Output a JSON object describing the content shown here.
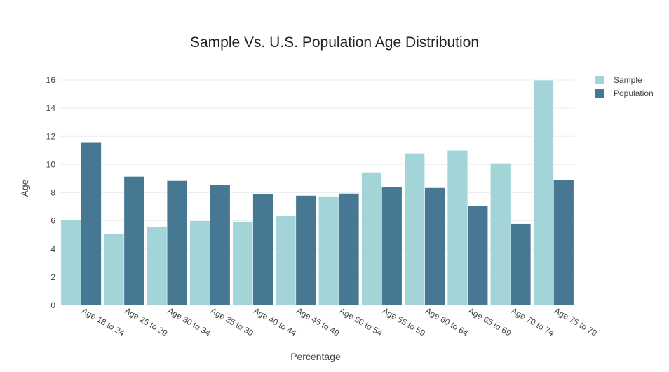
{
  "chart_data": {
    "type": "bar",
    "title": "Sample Vs. U.S. Population Age Distribution",
    "xlabel": "Percentage",
    "ylabel": "Age",
    "categories": [
      "Age 18 to 24",
      "Age 25 to 29",
      "Age 30 to 34",
      "Age 35 to 39",
      "Age 40 to 44",
      "Age 45 to 49",
      "Age 50 to 54",
      "Age 55 to 59",
      "Age 60 to 64",
      "Age 65 to 69",
      "Age 70 to 74",
      "Age 75 to 79"
    ],
    "series": [
      {
        "name": "Sample",
        "color": "#a3d4d8",
        "values": [
          6.1,
          5.05,
          5.6,
          6.0,
          5.9,
          6.35,
          7.75,
          9.45,
          10.8,
          11.0,
          10.1,
          16.0
        ]
      },
      {
        "name": "Population",
        "color": "#467793",
        "values": [
          11.55,
          9.15,
          8.85,
          8.55,
          7.9,
          7.8,
          7.95,
          8.4,
          8.35,
          7.05,
          5.8,
          8.9
        ]
      }
    ],
    "ylim": [
      0,
      16.8
    ],
    "yticks": [
      0,
      2,
      4,
      6,
      8,
      10,
      12,
      14,
      16
    ],
    "grid": true,
    "legend": "top-right"
  }
}
